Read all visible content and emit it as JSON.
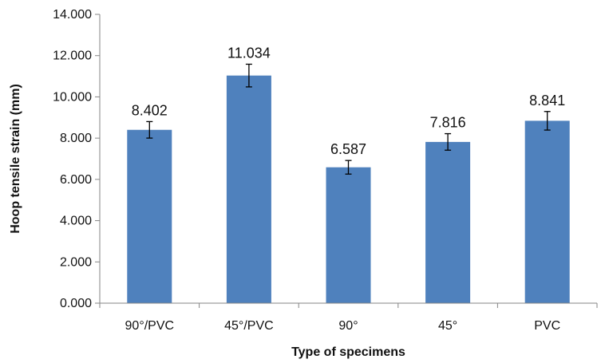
{
  "chart_data": {
    "type": "bar",
    "title": "",
    "xlabel": "Type of specimens",
    "ylabel": "Hoop tensile strain (mm)",
    "categories": [
      "90°/PVC",
      "45°/PVC",
      "90°",
      "45°",
      "PVC"
    ],
    "values": [
      8.402,
      11.034,
      6.587,
      7.816,
      8.841
    ],
    "value_labels": [
      "8.402",
      "11.034",
      "6.587",
      "7.816",
      "8.841"
    ],
    "error": [
      0.4,
      0.55,
      0.33,
      0.4,
      0.45
    ],
    "ylim": [
      0,
      14
    ],
    "yticks": [
      0,
      2,
      4,
      6,
      8,
      10,
      12,
      14
    ],
    "ytick_labels": [
      "0.000",
      "2.000",
      "4.000",
      "6.000",
      "8.000",
      "10.000",
      "12.000",
      "14.000"
    ],
    "grid": false,
    "legend": "none",
    "colors": {
      "bar": "#4F81BD",
      "axis": "#868686",
      "error_bar": "#000000"
    }
  }
}
